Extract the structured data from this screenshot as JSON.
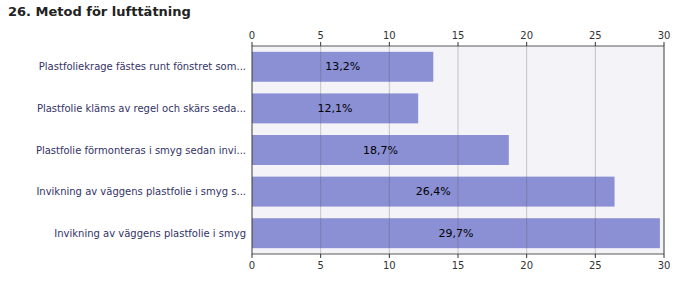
{
  "chart_data": {
    "type": "bar",
    "orientation": "horizontal",
    "title": "26. Metod för lufttätning",
    "categories": [
      "Invikning av väggens plastfolie i smyg",
      "Invikning av väggens plastfolie i smyg s...",
      "Plastfolie förmonteras i smyg sedan invi...",
      "Plastfolie kläms av regel och skärs seda...",
      "Plastfoliekrage fästes runt fönstret som..."
    ],
    "values": [
      29.7,
      26.4,
      18.7,
      12.1,
      13.2
    ],
    "value_labels": [
      "29,7%",
      "26,4%",
      "18,7%",
      "12,1%",
      "13,2%"
    ],
    "data_labels": true,
    "color": "#8b8fd4",
    "xlim": [
      0,
      30
    ],
    "xticks": [
      0,
      5,
      10,
      15,
      20,
      25,
      30
    ],
    "grid": true
  }
}
